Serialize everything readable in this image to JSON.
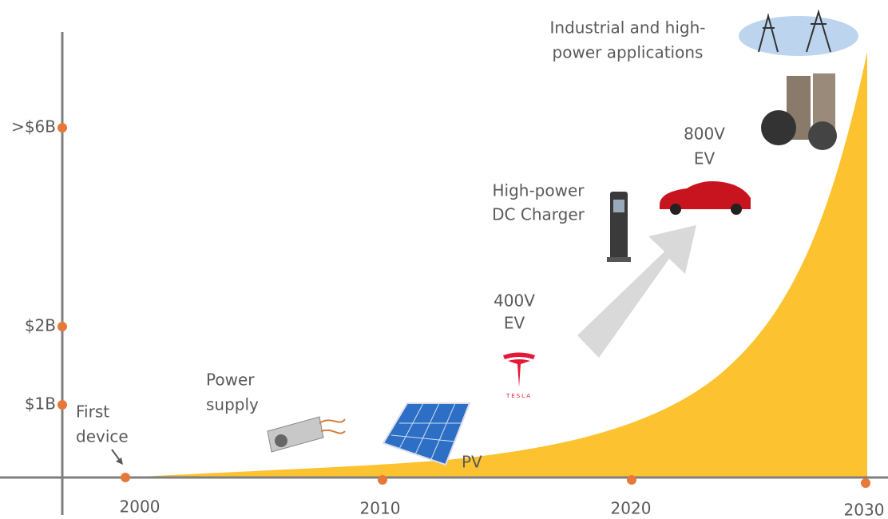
{
  "y_axis": {
    "labels": [
      ">$6B",
      "$2B",
      "$1B"
    ]
  },
  "x_axis": {
    "labels": [
      "2000",
      "2010",
      "2020",
      "2030"
    ]
  },
  "annotations": {
    "first_device": [
      "First",
      "device"
    ],
    "power_supply": [
      "Power",
      "supply"
    ],
    "pv": "PV",
    "ev_400v": [
      "400V",
      "EV"
    ],
    "dc_charger": [
      "High-power",
      "DC Charger"
    ],
    "ev_800v": [
      "800V",
      "EV"
    ],
    "industrial": [
      "Industrial and high-",
      "power applications"
    ],
    "tesla_logo": "TESLA"
  }
}
